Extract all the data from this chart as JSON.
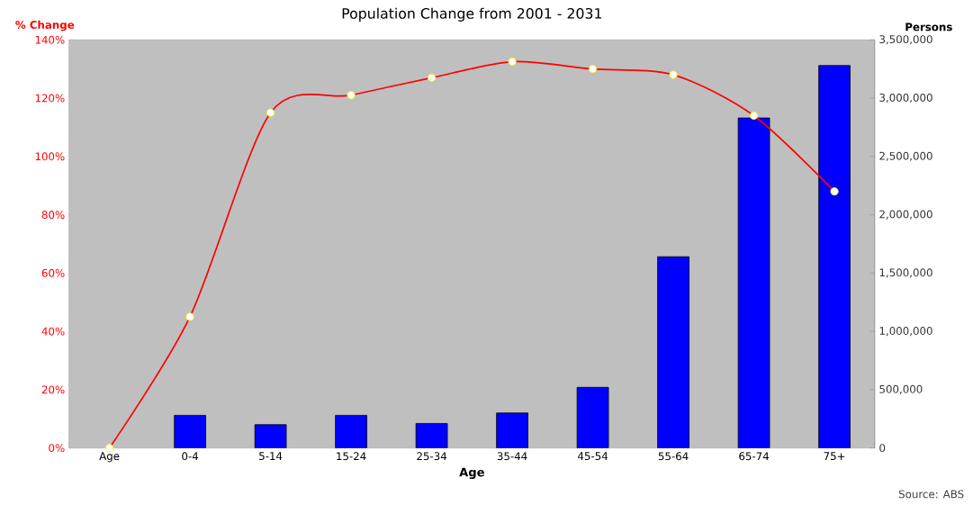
{
  "chart_data": {
    "type": "bar",
    "title": "Population Change from 2001 - 2031",
    "xlabel": "Age",
    "ylabel": "% Change",
    "y2label": "Persons",
    "annotations": [
      "Source: ABS"
    ],
    "categories": [
      "Age",
      "0-4",
      "5-14",
      "15-24",
      "25-34",
      "35-44",
      "45-54",
      "55-64",
      "65-74",
      "75+"
    ],
    "series": [
      {
        "axis": "y2",
        "color": "#0000ff",
        "values": [
          null,
          280000,
          200000,
          280000,
          210000,
          300000,
          520000,
          1640000,
          2830000,
          3280000
        ]
      },
      {
        "type": "line",
        "axis": "y",
        "color": "#ff0000",
        "marker": "circle",
        "line_style": "solid",
        "values": [
          0,
          45,
          115,
          121,
          127,
          132.5,
          130,
          128,
          114,
          88
        ]
      }
    ],
    "ylim": [
      0,
      140
    ],
    "yticks": [
      {
        "value": 0,
        "label": "0%"
      },
      {
        "value": 20,
        "label": "20%"
      },
      {
        "value": 40,
        "label": "40%"
      },
      {
        "value": 60,
        "label": "60%"
      },
      {
        "value": 80,
        "label": "80%"
      },
      {
        "value": 100,
        "label": "100%"
      },
      {
        "value": 120,
        "label": "120%"
      },
      {
        "value": 140,
        "label": "140%"
      }
    ],
    "y2lim": [
      0,
      3500000
    ],
    "y2ticks": [
      0,
      {
        "value": 500000,
        "label": "500,000"
      },
      {
        "value": 1000000,
        "label": "1,000,000"
      },
      {
        "value": 1500000,
        "label": "1,500,000"
      },
      {
        "value": 2000000,
        "label": "2,000,000"
      },
      {
        "value": 2500000,
        "label": "2,500,000"
      },
      {
        "value": 3000000,
        "label": "3,000,000"
      },
      {
        "value": 3500000,
        "label": "3,500,000"
      }
    ]
  }
}
